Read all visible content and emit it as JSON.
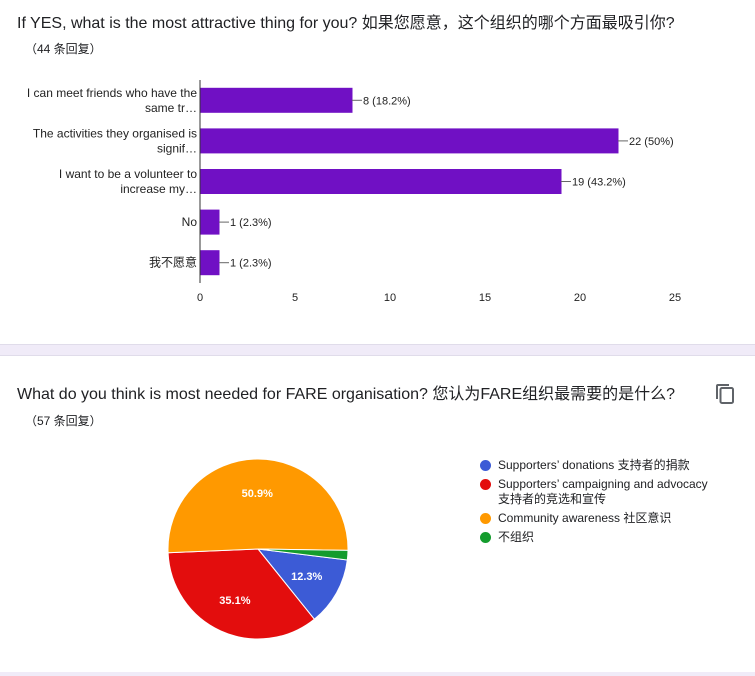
{
  "q1": {
    "title": "If YES, what is the most attractive thing for you? 如果您愿意，这个组织的哪个方面最吸引你?",
    "count": "（44 条回复）"
  },
  "q2": {
    "title": "What do you think is most needed for FARE organisation? 您认为FARE组织最需要的是什么?",
    "count": "（57 条回复）"
  },
  "chart_data": [
    {
      "type": "bar",
      "orientation": "horizontal",
      "categories": [
        [
          "I can meet friends who have the",
          "same tr…"
        ],
        [
          "The activities they organised is",
          "signif…"
        ],
        [
          "I want to be a volunteer to",
          "increase my…"
        ],
        [
          "No"
        ],
        [
          "我不愿意"
        ]
      ],
      "values": [
        8,
        22,
        19,
        1,
        1
      ],
      "data_labels": [
        "8 (18.2%)",
        "22 (50%)",
        "19 (43.2%)",
        "1 (2.3%)",
        "1 (2.3%)"
      ],
      "xlim": [
        0,
        25
      ],
      "xticks": [
        0,
        5,
        10,
        15,
        20,
        25
      ],
      "bar_color": "#7010c4",
      "grid": false
    },
    {
      "type": "pie",
      "labels": [
        "Supporters’ donations 支持者的捐款",
        "Supporters’ campaigning and advocacy 支持者的竞选和宣传",
        "Community awareness 社区意识",
        "不组织"
      ],
      "values": [
        12.3,
        35.1,
        50.9,
        1.7
      ],
      "data_labels": [
        "12.3%",
        "35.1%",
        "50.9%",
        ""
      ],
      "colors": [
        "#3c5bd6",
        "#e30d0d",
        "#ff9900",
        "#149c2d"
      ],
      "legend_position": "right"
    }
  ],
  "legend_text": [
    [
      "Supporters’ donations 支持者的捐款"
    ],
    [
      "Supporters’ campaigning and advocacy",
      "支持者的竞选和宣传"
    ],
    [
      "Community awareness 社区意识"
    ],
    [
      "不组织"
    ]
  ],
  "icons": {
    "copy": "copy-icon"
  }
}
